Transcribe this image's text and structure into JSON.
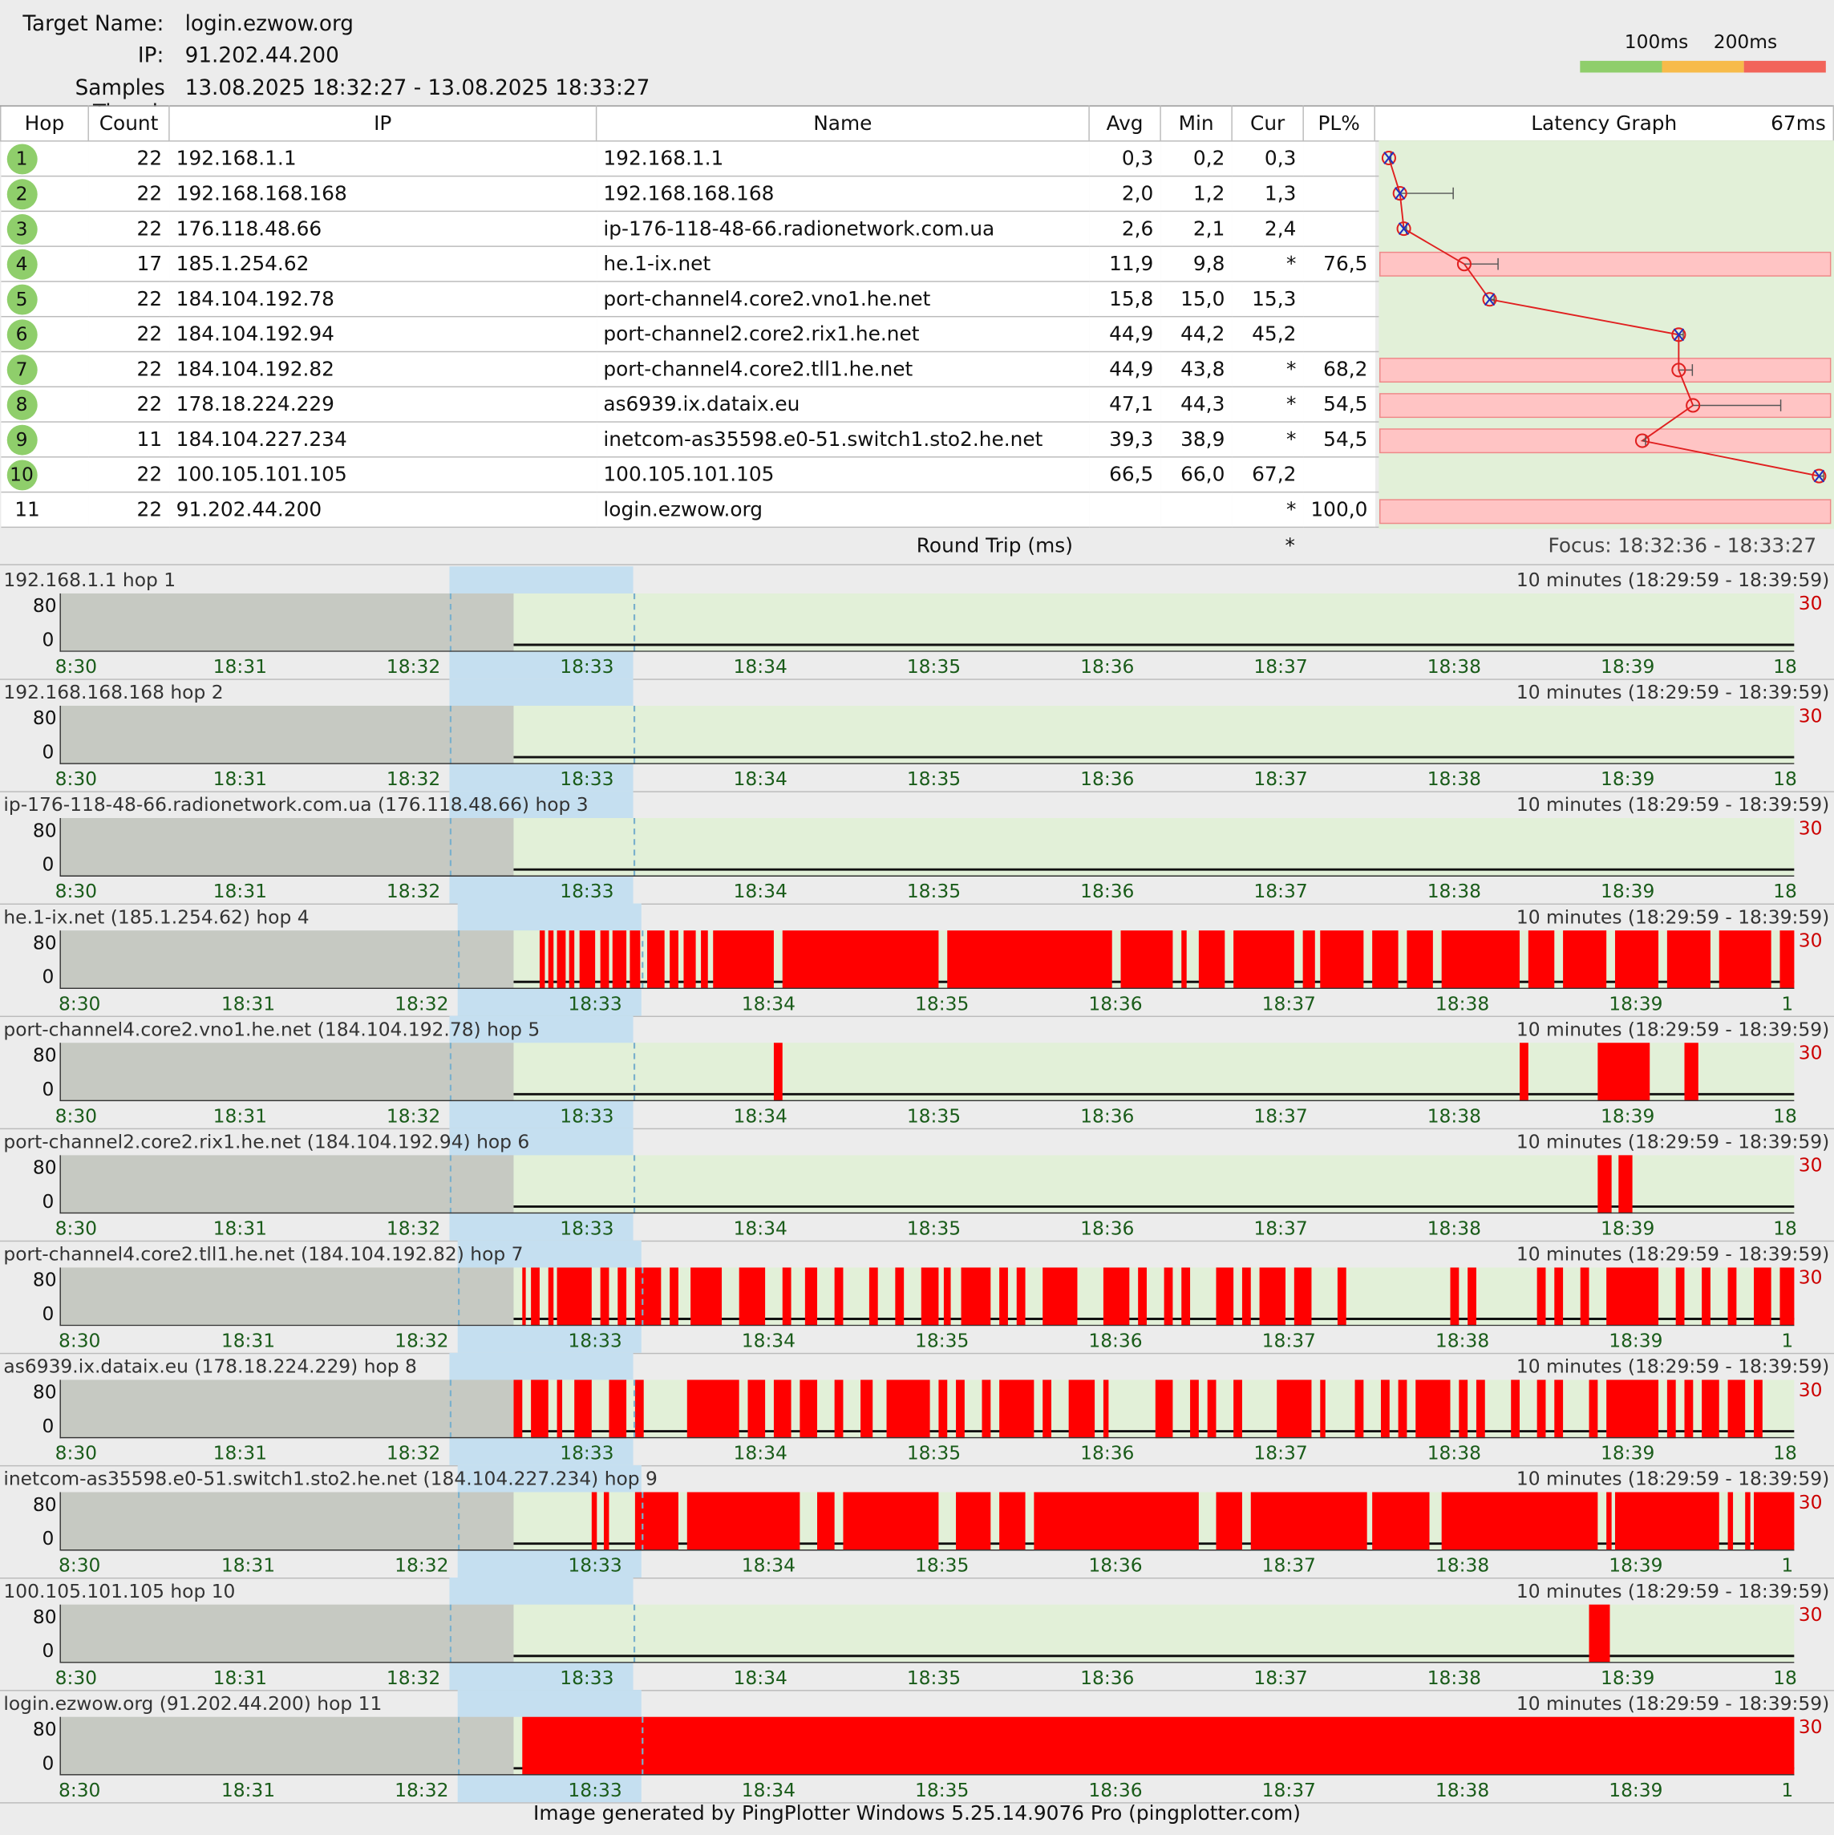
{
  "header": {
    "target_label": "Target Name:",
    "target_value": "login.ezwow.org",
    "ip_label": "IP:",
    "ip_value": "91.202.44.200",
    "samples_label": "Samples Timed:",
    "samples_value": "13.08.2025 18:32:27 - 13.08.2025 18:33:27"
  },
  "legend": {
    "label_100": "100ms",
    "label_200": "200ms",
    "colors": [
      "#8fce6b",
      "#f7bb4a",
      "#f2645a"
    ]
  },
  "columns": {
    "hop": "Hop",
    "count": "Count",
    "ip": "IP",
    "name": "Name",
    "avg": "Avg",
    "min": "Min",
    "cur": "Cur",
    "pl": "PL%",
    "graph": "Latency Graph",
    "graph_max": "67ms"
  },
  "hops": [
    {
      "hop": "1",
      "count": "22",
      "ip": "192.168.1.1",
      "name": "192.168.1.1",
      "avg": "0,3",
      "min": "0,2",
      "cur": "0,3",
      "pl": "",
      "avg_ms": 0.3,
      "max_ms": 0.6,
      "loss": false
    },
    {
      "hop": "2",
      "count": "22",
      "ip": "192.168.168.168",
      "name": "192.168.168.168",
      "avg": "2,0",
      "min": "1,2",
      "cur": "1,3",
      "pl": "",
      "avg_ms": 2.0,
      "max_ms": 10.2,
      "loss": false
    },
    {
      "hop": "3",
      "count": "22",
      "ip": "176.118.48.66",
      "name": "ip-176-118-48-66.radionetwork.com.ua",
      "avg": "2,6",
      "min": "2,1",
      "cur": "2,4",
      "pl": "",
      "avg_ms": 2.6,
      "max_ms": 3.0,
      "loss": false
    },
    {
      "hop": "4",
      "count": "17",
      "ip": "185.1.254.62",
      "name": "he.1-ix.net",
      "avg": "11,9",
      "min": "9,8",
      "cur": "*",
      "pl": "76,5",
      "avg_ms": 11.9,
      "max_ms": 17.1,
      "loss": true
    },
    {
      "hop": "5",
      "count": "22",
      "ip": "184.104.192.78",
      "name": "port-channel4.core2.vno1.he.net",
      "avg": "15,8",
      "min": "15,0",
      "cur": "15,3",
      "pl": "",
      "avg_ms": 15.8,
      "max_ms": 16.5,
      "loss": false
    },
    {
      "hop": "6",
      "count": "22",
      "ip": "184.104.192.94",
      "name": "port-channel2.core2.rix1.he.net",
      "avg": "44,9",
      "min": "44,2",
      "cur": "45,2",
      "pl": "",
      "avg_ms": 44.9,
      "max_ms": 45.6,
      "loss": false
    },
    {
      "hop": "7",
      "count": "22",
      "ip": "184.104.192.82",
      "name": "port-channel4.core2.tll1.he.net",
      "avg": "44,9",
      "min": "43,8",
      "cur": "*",
      "pl": "68,2",
      "avg_ms": 44.9,
      "max_ms": 47.0,
      "loss": true
    },
    {
      "hop": "8",
      "count": "22",
      "ip": "178.18.224.229",
      "name": "as6939.ix.dataix.eu",
      "avg": "47,1",
      "min": "44,3",
      "cur": "*",
      "pl": "54,5",
      "avg_ms": 47.1,
      "max_ms": 60.6,
      "loss": true
    },
    {
      "hop": "9",
      "count": "11",
      "ip": "184.104.227.234",
      "name": "inetcom-as35598.e0-51.switch1.sto2.he.net",
      "avg": "39,3",
      "min": "38,9",
      "cur": "*",
      "pl": "54,5",
      "avg_ms": 39.3,
      "max_ms": 39.8,
      "loss": true
    },
    {
      "hop": "10",
      "count": "22",
      "ip": "100.105.101.105",
      "name": "100.105.101.105",
      "avg": "66,5",
      "min": "66,0",
      "cur": "67,2",
      "pl": "",
      "avg_ms": 66.5,
      "max_ms": 67.2,
      "loss": false
    },
    {
      "hop": "11",
      "count": "22",
      "ip": "91.202.44.200",
      "name": "login.ezwow.org",
      "avg": "",
      "min": "",
      "cur": "*",
      "pl": "100,0",
      "avg_ms": null,
      "max_ms": null,
      "loss": true
    }
  ],
  "roundtrip": {
    "label": "Round Trip (ms)",
    "cur": "*",
    "focus": "Focus: 18:32:36 - 18:33:27"
  },
  "timeline": {
    "range_label": "10 minutes (18:29:59 - 18:39:59)",
    "scale_label": "30",
    "y_top": "80",
    "y_bottom": "0",
    "x_labels_a": [
      "8:30",
      "18:31",
      "18:32",
      "18:33",
      "18:34",
      "18:35",
      "18:36",
      "18:37",
      "18:38",
      "18:39",
      "18"
    ],
    "x_labels_b": [
      "8:30",
      "18:31",
      "18:32",
      "18:33",
      "18:34",
      "18:35",
      "18:36",
      "18:37",
      "18:38",
      "18:39",
      "1"
    ],
    "panels": [
      {
        "title": "192.168.1.1 hop 1",
        "variant": "a",
        "loss_minutes": []
      },
      {
        "title": "192.168.168.168 hop 2",
        "variant": "a",
        "loss_minutes": []
      },
      {
        "title": "ip-176-118-48-66.radionetwork.com.ua (176.118.48.66) hop 3",
        "variant": "a",
        "loss_minutes": []
      },
      {
        "title": "he.1-ix.net (185.1.254.62) hop 4",
        "variant": "b",
        "loss_minutes": [
          [
            32.75,
            32.78
          ],
          [
            32.8,
            32.83
          ],
          [
            32.85,
            32.9
          ],
          [
            32.92,
            32.95
          ],
          [
            32.98,
            33.07
          ],
          [
            33.1,
            33.15
          ],
          [
            33.17,
            33.25
          ],
          [
            33.27,
            33.33
          ],
          [
            33.37,
            33.47
          ],
          [
            33.5,
            33.55
          ],
          [
            33.58,
            33.65
          ],
          [
            33.68,
            33.72
          ],
          [
            33.75,
            34.1
          ],
          [
            34.15,
            35.05
          ],
          [
            35.1,
            36.05
          ],
          [
            36.1,
            36.4
          ],
          [
            36.45,
            36.48
          ],
          [
            36.55,
            36.7
          ],
          [
            36.75,
            37.1
          ],
          [
            37.15,
            37.22
          ],
          [
            37.25,
            37.5
          ],
          [
            37.55,
            37.7
          ],
          [
            37.75,
            37.9
          ],
          [
            37.95,
            38.4
          ],
          [
            38.45,
            38.6
          ],
          [
            38.65,
            38.9
          ],
          [
            38.95,
            39.2
          ],
          [
            39.25,
            39.5
          ],
          [
            39.55,
            39.85
          ],
          [
            39.9,
            40
          ]
        ]
      },
      {
        "title": "port-channel4.core2.vno1.he.net (184.104.192.78) hop 5",
        "variant": "a",
        "loss_minutes": [
          [
            34.1,
            34.15
          ],
          [
            38.4,
            38.45
          ],
          [
            38.85,
            39.15
          ],
          [
            39.35,
            39.43
          ]
        ]
      },
      {
        "title": "port-channel2.core2.rix1.he.net (184.104.192.94) hop 6",
        "variant": "a",
        "loss_minutes": [
          [
            38.85,
            38.93
          ],
          [
            38.97,
            39.05
          ]
        ]
      },
      {
        "title": "port-channel4.core2.tll1.he.net (184.104.192.82) hop 7",
        "variant": "b",
        "loss_minutes": [
          [
            32.65,
            32.67
          ],
          [
            32.7,
            32.75
          ],
          [
            32.8,
            32.83
          ],
          [
            32.85,
            33.05
          ],
          [
            33.1,
            33.15
          ],
          [
            33.2,
            33.25
          ],
          [
            33.3,
            33.45
          ],
          [
            33.5,
            33.55
          ],
          [
            33.62,
            33.8
          ],
          [
            33.9,
            34.05
          ],
          [
            34.15,
            34.2
          ],
          [
            34.28,
            34.35
          ],
          [
            34.45,
            34.5
          ],
          [
            34.65,
            34.7
          ],
          [
            34.8,
            34.85
          ],
          [
            34.95,
            35.05
          ],
          [
            35.08,
            35.12
          ],
          [
            35.18,
            35.35
          ],
          [
            35.4,
            35.45
          ],
          [
            35.5,
            35.55
          ],
          [
            35.65,
            35.85
          ],
          [
            36.0,
            36.15
          ],
          [
            36.2,
            36.25
          ],
          [
            36.35,
            36.4
          ],
          [
            36.45,
            36.5
          ],
          [
            36.65,
            36.75
          ],
          [
            36.8,
            36.85
          ],
          [
            36.9,
            37.05
          ],
          [
            37.1,
            37.2
          ],
          [
            37.35,
            37.4
          ],
          [
            38.0,
            38.05
          ],
          [
            38.1,
            38.15
          ],
          [
            38.5,
            38.55
          ],
          [
            38.6,
            38.65
          ],
          [
            38.75,
            38.8
          ],
          [
            38.9,
            39.2
          ],
          [
            39.3,
            39.35
          ],
          [
            39.45,
            39.5
          ],
          [
            39.6,
            39.65
          ],
          [
            39.75,
            39.85
          ],
          [
            39.9,
            40
          ]
        ]
      },
      {
        "title": "as6939.ix.dataix.eu (178.18.224.229) hop 8",
        "variant": "a",
        "loss_minutes": [
          [
            32.6,
            32.65
          ],
          [
            32.7,
            32.8
          ],
          [
            32.85,
            32.88
          ],
          [
            32.95,
            33.05
          ],
          [
            33.15,
            33.25
          ],
          [
            33.3,
            33.35
          ],
          [
            33.6,
            33.9
          ],
          [
            33.95,
            34.05
          ],
          [
            34.1,
            34.2
          ],
          [
            34.25,
            34.35
          ],
          [
            34.45,
            34.5
          ],
          [
            34.6,
            34.67
          ],
          [
            34.75,
            35.0
          ],
          [
            35.05,
            35.1
          ],
          [
            35.15,
            35.2
          ],
          [
            35.3,
            35.35
          ],
          [
            35.4,
            35.6
          ],
          [
            35.65,
            35.7
          ],
          [
            35.8,
            35.95
          ],
          [
            36.0,
            36.03
          ],
          [
            36.3,
            36.4
          ],
          [
            36.5,
            36.55
          ],
          [
            36.6,
            36.65
          ],
          [
            36.75,
            36.8
          ],
          [
            37.0,
            37.2
          ],
          [
            37.25,
            37.28
          ],
          [
            37.45,
            37.5
          ],
          [
            37.6,
            37.65
          ],
          [
            37.7,
            37.75
          ],
          [
            37.8,
            38.0
          ],
          [
            38.05,
            38.1
          ],
          [
            38.15,
            38.2
          ],
          [
            38.35,
            38.4
          ],
          [
            38.5,
            38.55
          ],
          [
            38.6,
            38.65
          ],
          [
            38.8,
            38.85
          ],
          [
            38.9,
            39.2
          ],
          [
            39.25,
            39.3
          ],
          [
            39.35,
            39.4
          ],
          [
            39.45,
            39.55
          ],
          [
            39.6,
            39.7
          ],
          [
            39.75,
            39.8
          ]
        ]
      },
      {
        "title": "inetcom-as35598.e0-51.switch1.sto2.he.net (184.104.227.234) hop 9",
        "variant": "b",
        "loss_minutes": [
          [
            33.05,
            33.08
          ],
          [
            33.12,
            33.15
          ],
          [
            33.3,
            33.55
          ],
          [
            33.6,
            34.25
          ],
          [
            34.35,
            34.45
          ],
          [
            34.5,
            35.05
          ],
          [
            35.15,
            35.35
          ],
          [
            35.4,
            35.55
          ],
          [
            35.6,
            36.55
          ],
          [
            36.65,
            36.8
          ],
          [
            36.85,
            37.52
          ],
          [
            37.55,
            37.88
          ],
          [
            37.95,
            38.85
          ],
          [
            38.9,
            38.93
          ],
          [
            38.95,
            39.55
          ],
          [
            39.6,
            39.63
          ],
          [
            39.7,
            39.73
          ],
          [
            39.75,
            40
          ]
        ]
      },
      {
        "title": "100.105.101.105 hop 10",
        "variant": "a",
        "loss_minutes": [
          [
            38.8,
            38.92
          ]
        ]
      },
      {
        "title": "login.ezwow.org (91.202.44.200) hop 11",
        "variant": "b",
        "loss_minutes": [
          [
            32.65,
            40
          ]
        ]
      }
    ]
  },
  "footer": "Image generated by PingPlotter Windows 5.25.14.9076 Pro (pingplotter.com)"
}
